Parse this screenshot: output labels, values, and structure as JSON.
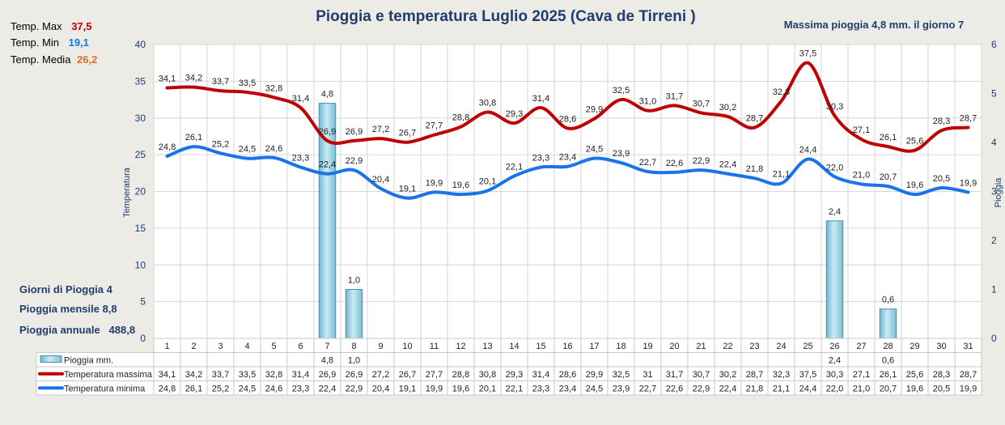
{
  "chart_data": {
    "type": "line",
    "title": "Pioggia e temperatura Luglio 2025 (Cava de Tirreni )",
    "subtitle": "Massima pioggia 4,8 mm. il giorno 7",
    "ylabel": "Temperatura",
    "y2label": "Pioggia",
    "ylim": [
      0,
      40
    ],
    "y2lim": [
      0,
      6
    ],
    "yticks": [
      "0",
      "5",
      "10",
      "15",
      "20",
      "25",
      "30",
      "35",
      "40"
    ],
    "y2ticks": [
      "0",
      "1",
      "2",
      "3",
      "4",
      "5",
      "6"
    ],
    "grid": true,
    "categories": [
      "1",
      "2",
      "3",
      "4",
      "5",
      "6",
      "7",
      "8",
      "9",
      "10",
      "11",
      "12",
      "13",
      "14",
      "15",
      "16",
      "17",
      "18",
      "19",
      "20",
      "21",
      "22",
      "23",
      "24",
      "25",
      "26",
      "27",
      "28",
      "29",
      "30",
      "31"
    ],
    "series": [
      {
        "name": "Pioggia mm.",
        "type": "bar",
        "axis": "right",
        "color": "#a8d8e8",
        "values": [
          null,
          null,
          null,
          null,
          null,
          null,
          4.8,
          1.0,
          null,
          null,
          null,
          null,
          null,
          null,
          null,
          null,
          null,
          null,
          null,
          null,
          null,
          null,
          null,
          null,
          null,
          2.4,
          null,
          0.6,
          null,
          null,
          null
        ],
        "labels": [
          "",
          "",
          "",
          "",
          "",
          "",
          "4,8",
          "1,0",
          "",
          "",
          "",
          "",
          "",
          "",
          "",
          "",
          "",
          "",
          "",
          "",
          "",
          "",
          "",
          "",
          "",
          "2,4",
          "",
          "0,6",
          "",
          "",
          ""
        ]
      },
      {
        "name": "Temperatura massima",
        "type": "line",
        "axis": "left",
        "color": "#c00000",
        "values": [
          34.1,
          34.2,
          33.7,
          33.5,
          32.8,
          31.4,
          26.9,
          26.9,
          27.2,
          26.7,
          27.7,
          28.8,
          30.8,
          29.3,
          31.4,
          28.6,
          29.9,
          32.5,
          31.0,
          31.7,
          30.7,
          30.2,
          28.7,
          32.3,
          37.5,
          30.3,
          27.1,
          26.1,
          25.6,
          28.3,
          28.7
        ],
        "labels": [
          "34,1",
          "34,2",
          "33,7",
          "33,5",
          "32,8",
          "31,4",
          "26,9",
          "26,9",
          "27,2",
          "26,7",
          "27,7",
          "28,8",
          "30,8",
          "29,3",
          "31,4",
          "28,6",
          "29,9",
          "32,5",
          "31,0",
          "31,7",
          "30,7",
          "30,2",
          "28,7",
          "32,3",
          "37,5",
          "30,3",
          "27,1",
          "26,1",
          "25,6",
          "28,3",
          "28,7"
        ],
        "table": [
          "34,1",
          "34,2",
          "33,7",
          "33,5",
          "32,8",
          "31,4",
          "26,9",
          "26,9",
          "27,2",
          "26,7",
          "27,7",
          "28,8",
          "30,8",
          "29,3",
          "31,4",
          "28,6",
          "29,9",
          "32,5",
          "31",
          "31,7",
          "30,7",
          "30,2",
          "28,7",
          "32,3",
          "37,5",
          "30,3",
          "27,1",
          "26,1",
          "25,6",
          "28,3",
          "28,7"
        ]
      },
      {
        "name": "Temperatura minima",
        "type": "line",
        "axis": "left",
        "color": "#1874e8",
        "values": [
          24.8,
          26.1,
          25.2,
          24.5,
          24.6,
          23.3,
          22.4,
          22.9,
          20.4,
          19.1,
          19.9,
          19.6,
          20.1,
          22.1,
          23.3,
          23.4,
          24.5,
          23.9,
          22.7,
          22.6,
          22.9,
          22.4,
          21.8,
          21.1,
          24.4,
          22.0,
          21.0,
          20.7,
          19.6,
          20.5,
          19.9
        ],
        "labels": [
          "24,8",
          "26,1",
          "25,2",
          "24,5",
          "24,6",
          "23,3",
          "22,4",
          "22,9",
          "20,4",
          "19,1",
          "19,9",
          "19,6",
          "20,1",
          "22,1",
          "23,3",
          "23,4",
          "24,5",
          "23,9",
          "22,7",
          "22,6",
          "22,9",
          "22,4",
          "21,8",
          "21,1",
          "24,4",
          "22,0",
          "21,0",
          "20,7",
          "19,6",
          "20,5",
          "19,9"
        ],
        "table": [
          "24,8",
          "26,1",
          "25,2",
          "24,5",
          "24,6",
          "23,3",
          "22,4",
          "22,9",
          "20,4",
          "19,1",
          "19,9",
          "19,6",
          "20,1",
          "22,1",
          "23,3",
          "23,4",
          "24,5",
          "23,9",
          "22,7",
          "22,6",
          "22,9",
          "22,4",
          "21,8",
          "21,1",
          "24,4",
          "22,0",
          "21,0",
          "20,7",
          "19,6",
          "20,5",
          "19,9"
        ]
      }
    ]
  },
  "stats": {
    "max_label": "Temp. Max",
    "max_value": "37,5",
    "max_color": "#c00000",
    "min_label": "Temp. Min",
    "min_value": "19,1",
    "min_color": "#1874e8",
    "avg_label": "Temp. Media",
    "avg_value": "26,2",
    "avg_color": "#e07020"
  },
  "summary": {
    "rain_days": "Giorni di Pioggia  4",
    "rain_month": "Pioggia mensile  8,8",
    "rain_year": "Pioggia annuale   488,8"
  }
}
